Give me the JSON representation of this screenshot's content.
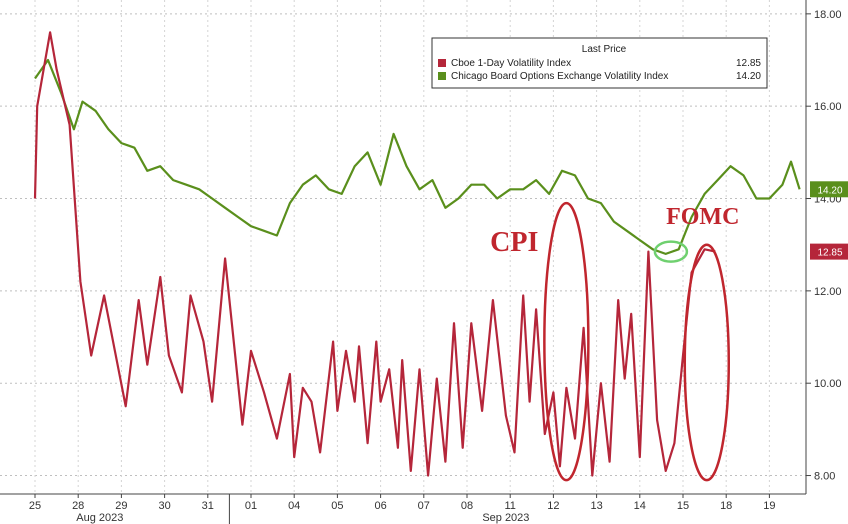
{
  "chart_data": {
    "type": "line",
    "ylim": [
      7.6,
      18.3
    ],
    "yticks": [
      "18.00",
      "16.00",
      "14.00",
      "12.00",
      "10.00",
      "8.00"
    ],
    "ytick_values": [
      18,
      16,
      14,
      12,
      10,
      8
    ],
    "x_days": [
      "25",
      "28",
      "29",
      "30",
      "31",
      "01",
      "04",
      "05",
      "06",
      "07",
      "08",
      "11",
      "12",
      "13",
      "14",
      "15",
      "18",
      "19"
    ],
    "x_months": [
      "Aug 2023",
      "Sep 2023"
    ],
    "legend": {
      "title": "Last Price",
      "placement": "top-right",
      "entries": [
        {
          "name": "Cboe 1-Day Volatility Index",
          "value": "12.85",
          "color": "#b5263a"
        },
        {
          "name": "Chicago Board Options Exchange Volatility Index",
          "value": "14.20",
          "color": "#5a8f1c"
        }
      ]
    },
    "series": [
      {
        "name": "Chicago Board Options Exchange Volatility Index",
        "color": "#5a8f1c",
        "last_label": "14.20",
        "x": [
          0,
          0.3,
          0.6,
          0.9,
          1.1,
          1.4,
          1.7,
          2.0,
          2.3,
          2.6,
          2.9,
          3.2,
          3.5,
          3.8,
          4.1,
          4.4,
          4.7,
          5.0,
          5.3,
          5.6,
          5.9,
          6.2,
          6.5,
          6.8,
          7.1,
          7.4,
          7.7,
          8.0,
          8.3,
          8.6,
          8.9,
          9.2,
          9.5,
          9.8,
          10.1,
          10.4,
          10.7,
          11.0,
          11.3,
          11.6,
          11.9,
          12.2,
          12.5,
          12.8,
          13.1,
          13.4,
          13.7,
          14.0,
          14.3,
          14.6,
          14.9,
          15.2,
          15.5,
          15.8,
          16.1,
          16.4,
          16.7,
          17.0,
          17.3,
          17.5,
          17.7
        ],
        "values": [
          16.6,
          17.0,
          16.3,
          15.5,
          16.1,
          15.9,
          15.5,
          15.2,
          15.1,
          14.6,
          14.7,
          14.4,
          14.3,
          14.2,
          14.0,
          13.8,
          13.6,
          13.4,
          13.3,
          13.2,
          13.9,
          14.3,
          14.5,
          14.2,
          14.1,
          14.7,
          15.0,
          14.3,
          15.4,
          14.7,
          14.2,
          14.4,
          13.8,
          14.0,
          14.3,
          14.3,
          14.0,
          14.2,
          14.2,
          14.4,
          14.1,
          14.6,
          14.5,
          14.0,
          13.9,
          13.5,
          13.3,
          13.1,
          12.9,
          12.8,
          12.9,
          13.6,
          14.1,
          14.4,
          14.7,
          14.5,
          14.0,
          14.0,
          14.3,
          14.8,
          14.2
        ]
      },
      {
        "name": "Cboe 1-Day Volatility Index",
        "color": "#b5263a",
        "last_label": "12.85",
        "x": [
          0,
          0.05,
          0.35,
          0.5,
          0.8,
          1.05,
          1.3,
          1.6,
          1.85,
          2.1,
          2.4,
          2.6,
          2.9,
          3.1,
          3.4,
          3.6,
          3.9,
          4.1,
          4.4,
          4.8,
          5.0,
          5.3,
          5.6,
          5.9,
          6.0,
          6.2,
          6.4,
          6.6,
          6.9,
          7.0,
          7.2,
          7.4,
          7.5,
          7.7,
          7.9,
          8.0,
          8.2,
          8.4,
          8.5,
          8.7,
          8.9,
          9.1,
          9.3,
          9.5,
          9.7,
          9.9,
          10.1,
          10.35,
          10.6,
          10.9,
          11.1,
          11.3,
          11.45,
          11.6,
          11.8,
          12.0,
          12.15,
          12.3,
          12.5,
          12.7,
          12.9,
          13.1,
          13.3,
          13.5,
          13.65,
          13.8,
          14.0,
          14.2,
          14.4,
          14.6,
          14.8,
          15.0,
          15.2,
          15.5,
          15.75
        ],
        "values": [
          14.0,
          16.0,
          17.6,
          16.8,
          15.6,
          12.2,
          10.6,
          11.9,
          10.7,
          9.5,
          11.8,
          10.4,
          12.3,
          10.6,
          9.8,
          11.9,
          10.9,
          9.6,
          12.7,
          9.1,
          10.7,
          9.8,
          8.8,
          10.2,
          8.4,
          9.9,
          9.6,
          8.5,
          10.9,
          9.4,
          10.7,
          9.6,
          10.8,
          8.7,
          10.9,
          9.6,
          10.3,
          8.6,
          10.5,
          8.1,
          10.3,
          8.0,
          10.1,
          8.3,
          11.3,
          8.6,
          11.3,
          9.4,
          11.8,
          9.3,
          8.5,
          11.9,
          9.6,
          11.6,
          8.9,
          9.8,
          8.2,
          9.9,
          8.8,
          11.2,
          8.0,
          10.0,
          8.3,
          11.8,
          10.1,
          11.5,
          8.4,
          12.85,
          9.2,
          8.1,
          8.7,
          10.6,
          12.4,
          12.9,
          12.85
        ]
      }
    ],
    "annotations": [
      {
        "text": "CPI",
        "x": 12.3,
        "ymin": 7.9,
        "ymax": 13.9,
        "color": "#c0262e"
      },
      {
        "text": "FOMC",
        "x": 15.55,
        "ymin": 7.9,
        "ymax": 13.0,
        "color": "#c0262e"
      },
      {
        "text": "",
        "x": 14.72,
        "y": 12.85,
        "color": "#6fd06f"
      }
    ]
  }
}
